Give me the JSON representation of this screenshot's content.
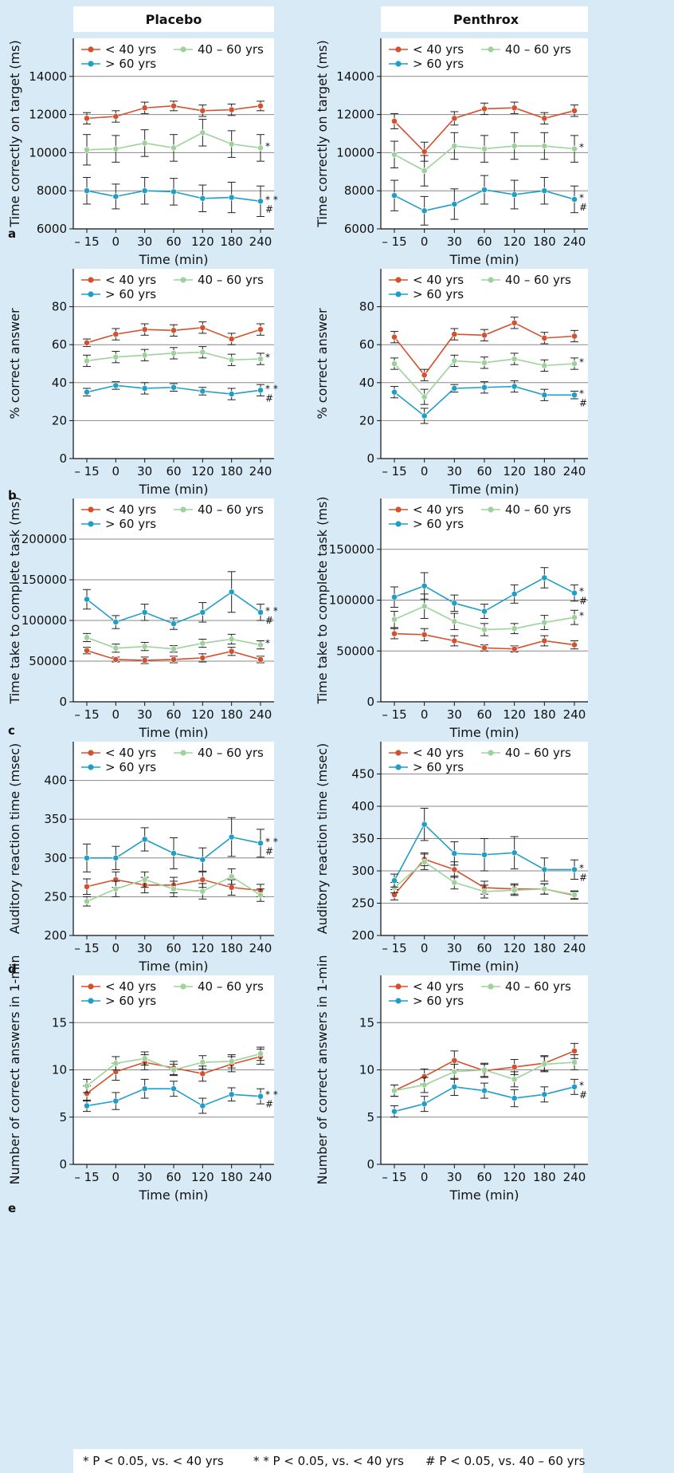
{
  "colors": {
    "lt40": "#d5502c",
    "40to60": "#9dd39a",
    "gt60": "#1f9fc6",
    "background": "#d8eaf5",
    "plot_bg": "#ffffff"
  },
  "columns": [
    "Placebo",
    "Penthrox"
  ],
  "footnote": {
    "a": "*   P < 0.05, vs. < 40 yrs",
    "b": "* *  P < 0.05, vs. < 40 yrs",
    "c": "#   P < 0.05, vs. 40 – 60 yrs"
  },
  "chart_data": [
    {
      "type": "line",
      "panel": "a",
      "group": "Placebo",
      "ylabel": "Time correctly on target (ms)",
      "xlabel": "Time (min)",
      "categories": [
        "– 15",
        "0",
        "30",
        "60",
        "120",
        "180",
        "240"
      ],
      "ylim": [
        6000,
        16000
      ],
      "yticks": [
        6000,
        8000,
        10000,
        12000,
        14000
      ],
      "legend": [
        "< 40 yrs",
        "40 – 60 yrs",
        "> 60 yrs"
      ],
      "series": [
        {
          "name": "< 40 yrs",
          "values": [
            11800,
            11900,
            12350,
            12450,
            12200,
            12250,
            12450
          ],
          "err": [
            300,
            300,
            300,
            250,
            300,
            300,
            250
          ]
        },
        {
          "name": "40 – 60 yrs",
          "values": [
            10150,
            10200,
            10500,
            10250,
            11050,
            10450,
            10250
          ],
          "err": [
            800,
            700,
            700,
            700,
            700,
            700,
            700
          ]
        },
        {
          "name": "> 60 yrs",
          "values": [
            8000,
            7700,
            8000,
            7950,
            7600,
            7650,
            7450
          ],
          "err": [
            700,
            650,
            700,
            700,
            700,
            800,
            800
          ]
        }
      ],
      "annotations": [
        {
          "series": 1,
          "text": "*"
        },
        {
          "series": 2,
          "text": "* *"
        },
        {
          "series": 2,
          "text": "#"
        }
      ]
    },
    {
      "type": "line",
      "panel": "a",
      "group": "Penthrox",
      "ylabel": "Time correctly on target (ms)",
      "xlabel": "Time (min)",
      "categories": [
        "– 15",
        "0",
        "30",
        "60",
        "120",
        "180",
        "240"
      ],
      "ylim": [
        6000,
        16000
      ],
      "yticks": [
        6000,
        8000,
        10000,
        12000,
        14000
      ],
      "legend": [
        "< 40 yrs",
        "40 – 60 yrs",
        "> 60 yrs"
      ],
      "series": [
        {
          "name": "< 40 yrs",
          "values": [
            11650,
            10050,
            11800,
            12300,
            12350,
            11800,
            12200
          ],
          "err": [
            400,
            500,
            350,
            300,
            300,
            300,
            300
          ]
        },
        {
          "name": "40 – 60 yrs",
          "values": [
            9900,
            9050,
            10350,
            10200,
            10350,
            10350,
            10200
          ],
          "err": [
            700,
            800,
            700,
            700,
            700,
            700,
            700
          ]
        },
        {
          "name": "> 60 yrs",
          "values": [
            7750,
            6950,
            7300,
            8050,
            7800,
            8000,
            7550
          ],
          "err": [
            800,
            750,
            800,
            750,
            750,
            700,
            700
          ]
        }
      ],
      "annotations": [
        {
          "series": 1,
          "text": "*"
        },
        {
          "series": 2,
          "text": "*"
        },
        {
          "series": 2,
          "text": "#"
        }
      ]
    },
    {
      "type": "line",
      "panel": "b",
      "group": "Placebo",
      "ylabel": "% correct answer",
      "xlabel": "Time (min)",
      "categories": [
        "– 15",
        "0",
        "30",
        "60",
        "120",
        "180",
        "240"
      ],
      "ylim": [
        0,
        100
      ],
      "yticks": [
        0,
        20,
        40,
        60,
        80
      ],
      "legend": [
        "< 40 yrs",
        "40 – 60 yrs",
        "> 60 yrs"
      ],
      "series": [
        {
          "name": "< 40 yrs",
          "values": [
            61,
            65.5,
            68,
            67.5,
            69,
            63,
            68
          ],
          "err": [
            2,
            3,
            3,
            3,
            3,
            3,
            3
          ]
        },
        {
          "name": "40 – 60 yrs",
          "values": [
            51.5,
            53.5,
            54.5,
            55.5,
            56,
            52,
            52.5
          ],
          "err": [
            3,
            3,
            3,
            3,
            3,
            3,
            3
          ]
        },
        {
          "name": "> 60 yrs",
          "values": [
            35,
            38.5,
            37,
            37.5,
            35.5,
            34,
            36
          ],
          "err": [
            2,
            2,
            3,
            2,
            2,
            3,
            3
          ]
        }
      ],
      "annotations": [
        {
          "series": 1,
          "text": "*"
        },
        {
          "series": 2,
          "text": "* *"
        },
        {
          "series": 2,
          "text": "#"
        }
      ]
    },
    {
      "type": "line",
      "panel": "b",
      "group": "Penthrox",
      "ylabel": "% correct answer",
      "xlabel": "Time (min)",
      "categories": [
        "– 15",
        "0",
        "30",
        "60",
        "120",
        "180",
        "240"
      ],
      "ylim": [
        0,
        100
      ],
      "yticks": [
        0,
        20,
        40,
        60,
        80
      ],
      "legend": [
        "< 40 yrs",
        "40 – 60 yrs",
        "> 60 yrs"
      ],
      "series": [
        {
          "name": "< 40 yrs",
          "values": [
            64,
            44,
            65.5,
            65,
            71.5,
            63.5,
            64.5
          ],
          "err": [
            3,
            3,
            3,
            3,
            3,
            3,
            3
          ]
        },
        {
          "name": "40 – 60 yrs",
          "values": [
            50,
            32.5,
            51.5,
            50.5,
            52.5,
            49,
            50
          ],
          "err": [
            3,
            4,
            3,
            3,
            3,
            3,
            3
          ]
        },
        {
          "name": "> 60 yrs",
          "values": [
            35,
            22.5,
            37,
            37.5,
            38,
            33.5,
            33.5
          ],
          "err": [
            3,
            4,
            2,
            3,
            3,
            3,
            2
          ]
        }
      ],
      "annotations": [
        {
          "series": 1,
          "text": "*"
        },
        {
          "series": 2,
          "text": "*"
        },
        {
          "series": 2,
          "text": "#"
        }
      ]
    },
    {
      "type": "line",
      "panel": "c",
      "group": "Placebo",
      "ylabel": "Time take to complete task (ms)",
      "xlabel": "Time (min)",
      "categories": [
        "– 15",
        "0",
        "30",
        "60",
        "120",
        "180",
        "240"
      ],
      "ylim": [
        0,
        250000
      ],
      "yticks": [
        0,
        50000,
        100000,
        150000,
        200000
      ],
      "legend": [
        "< 40 yrs",
        "40 – 60 yrs",
        "> 60 yrs"
      ],
      "series": [
        {
          "name": "< 40 yrs",
          "values": [
            63000,
            52000,
            51000,
            52000,
            54000,
            62000,
            52000
          ],
          "err": [
            4000,
            3000,
            4000,
            4000,
            5000,
            5000,
            4000
          ]
        },
        {
          "name": "40 – 60 yrs",
          "values": [
            79000,
            66000,
            68000,
            65000,
            72000,
            77000,
            70000
          ],
          "err": [
            5000,
            5000,
            5000,
            4000,
            5000,
            6000,
            5000
          ]
        },
        {
          "name": "> 60 yrs",
          "values": [
            126000,
            98000,
            110000,
            96000,
            110000,
            135000,
            110000
          ],
          "err": [
            12000,
            8000,
            10000,
            7000,
            12000,
            25000,
            10000
          ]
        }
      ],
      "annotations": [
        {
          "series": 1,
          "text": "*"
        },
        {
          "series": 2,
          "text": "* *"
        },
        {
          "series": 2,
          "text": "#"
        }
      ]
    },
    {
      "type": "line",
      "panel": "c",
      "group": "Penthrox",
      "ylabel": "Time take to complete task (ms)",
      "xlabel": "Time (min)",
      "categories": [
        "– 15",
        "0",
        "30",
        "60",
        "120",
        "180",
        "240"
      ],
      "ylim": [
        0,
        200000
      ],
      "yticks": [
        0,
        50000,
        100000,
        150000
      ],
      "legend": [
        "< 40 yrs",
        "40 – 60 yrs",
        "> 60 yrs"
      ],
      "series": [
        {
          "name": "< 40 yrs",
          "values": [
            67000,
            66000,
            60000,
            53000,
            52000,
            60000,
            56000
          ],
          "err": [
            5000,
            6000,
            5000,
            3000,
            3000,
            5000,
            4000
          ]
        },
        {
          "name": "40 – 60 yrs",
          "values": [
            81000,
            94000,
            79000,
            71000,
            72000,
            78000,
            83000
          ],
          "err": [
            8000,
            12000,
            8000,
            6000,
            5000,
            7000,
            7000
          ]
        },
        {
          "name": "> 60 yrs",
          "values": [
            103000,
            114000,
            97000,
            89000,
            106000,
            122000,
            107000
          ],
          "err": [
            10000,
            13000,
            8000,
            7000,
            9000,
            10000,
            8000
          ]
        }
      ],
      "annotations": [
        {
          "series": 1,
          "text": "*"
        },
        {
          "series": 2,
          "text": "*"
        },
        {
          "series": 2,
          "text": "#"
        }
      ]
    },
    {
      "type": "line",
      "panel": "d",
      "group": "Placebo",
      "ylabel": "Auditory reaction time (msec)",
      "xlabel": "Time (min)",
      "categories": [
        "– 15",
        "0",
        "30",
        "60",
        "120",
        "180",
        "240"
      ],
      "ylim": [
        200,
        450
      ],
      "yticks": [
        200,
        250,
        300,
        350,
        400
      ],
      "legend": [
        "< 40 yrs",
        "40 – 60 yrs",
        "> 60 yrs"
      ],
      "series": [
        {
          "name": "< 40 yrs",
          "values": [
            263,
            272,
            265,
            265,
            272,
            262,
            258
          ],
          "err": [
            10,
            10,
            10,
            10,
            10,
            10,
            8
          ]
        },
        {
          "name": "40 – 60 yrs",
          "values": [
            244,
            260,
            272,
            260,
            257,
            276,
            252
          ],
          "err": [
            6,
            10,
            10,
            10,
            10,
            10,
            8
          ]
        },
        {
          "name": "> 60 yrs",
          "values": [
            300,
            300,
            324,
            306,
            298,
            327,
            319
          ],
          "err": [
            18,
            15,
            15,
            20,
            15,
            25,
            18
          ]
        }
      ],
      "annotations": [
        {
          "series": 2,
          "text": "* *"
        },
        {
          "series": 2,
          "text": "#"
        }
      ]
    },
    {
      "type": "line",
      "panel": "d",
      "group": "Penthrox",
      "ylabel": "Auditory reaction time (msec)",
      "xlabel": "Time (min)",
      "categories": [
        "– 15",
        "0",
        "30",
        "60",
        "120",
        "180",
        "240"
      ],
      "ylim": [
        200,
        500
      ],
      "yticks": [
        200,
        250,
        300,
        350,
        400,
        450
      ],
      "legend": [
        "< 40 yrs",
        "40 – 60 yrs",
        "> 60 yrs"
      ],
      "series": [
        {
          "name": "< 40 yrs",
          "values": [
            263,
            318,
            302,
            274,
            272,
            272,
            262
          ],
          "err": [
            8,
            10,
            12,
            10,
            8,
            8,
            6
          ]
        },
        {
          "name": "40 – 60 yrs",
          "values": [
            274,
            314,
            282,
            268,
            270,
            272,
            263
          ],
          "err": [
            8,
            12,
            10,
            10,
            8,
            8,
            6
          ]
        },
        {
          "name": "> 60 yrs",
          "values": [
            285,
            372,
            327,
            325,
            328,
            302,
            302
          ],
          "err": [
            10,
            25,
            18,
            25,
            25,
            18,
            15
          ]
        }
      ],
      "annotations": [
        {
          "series": 2,
          "text": "*"
        },
        {
          "series": 2,
          "text": "#"
        }
      ]
    },
    {
      "type": "line",
      "panel": "e",
      "group": "Placebo",
      "ylabel": "Number of correct answers in 1-min",
      "xlabel": "Time (min)",
      "categories": [
        "– 15",
        "0",
        "30",
        "60",
        "120",
        "180",
        "240"
      ],
      "ylim": [
        0,
        20
      ],
      "yticks": [
        0,
        5,
        10,
        15
      ],
      "legend": [
        "< 40 yrs",
        "40 – 60 yrs",
        "> 60 yrs"
      ],
      "series": [
        {
          "name": "< 40 yrs",
          "values": [
            7.5,
            9.8,
            10.8,
            10.2,
            9.6,
            10.6,
            11.4
          ],
          "err": [
            0.8,
            0.9,
            0.8,
            0.7,
            0.8,
            0.8,
            0.8
          ]
        },
        {
          "name": "40 – 60 yrs",
          "values": [
            8.3,
            10.7,
            11.2,
            10.0,
            10.8,
            10.9,
            11.7
          ],
          "err": [
            0.7,
            0.7,
            0.7,
            0.6,
            0.7,
            0.7,
            0.7
          ]
        },
        {
          "name": "> 60 yrs",
          "values": [
            6.2,
            6.7,
            8.0,
            8.0,
            6.2,
            7.4,
            7.2
          ],
          "err": [
            0.6,
            0.9,
            1.0,
            0.8,
            0.8,
            0.7,
            0.8
          ]
        }
      ],
      "annotations": [
        {
          "series": 2,
          "text": "* *"
        },
        {
          "series": 2,
          "text": "#"
        }
      ]
    },
    {
      "type": "line",
      "panel": "e",
      "group": "Penthrox",
      "ylabel": "Number of correct answers in 1-min",
      "xlabel": "Time (min)",
      "categories": [
        "– 15",
        "0",
        "30",
        "60",
        "120",
        "180",
        "240"
      ],
      "ylim": [
        0,
        20
      ],
      "yticks": [
        0,
        5,
        10,
        15
      ],
      "legend": [
        "< 40 yrs",
        "40 – 60 yrs",
        "> 60 yrs"
      ],
      "series": [
        {
          "name": "< 40 yrs",
          "values": [
            7.8,
            9.3,
            11.0,
            9.9,
            10.3,
            10.7,
            12.0
          ],
          "err": [
            0.6,
            0.8,
            1.0,
            0.7,
            0.8,
            0.8,
            0.8
          ]
        },
        {
          "name": "40 – 60 yrs",
          "values": [
            7.8,
            8.4,
            9.8,
            10.0,
            9.0,
            10.6,
            10.8
          ],
          "err": [
            0.6,
            0.8,
            0.8,
            0.7,
            0.8,
            0.8,
            0.8
          ]
        },
        {
          "name": "> 60 yrs",
          "values": [
            5.6,
            6.4,
            8.2,
            7.8,
            7.0,
            7.4,
            8.2
          ],
          "err": [
            0.6,
            0.8,
            0.9,
            0.8,
            0.9,
            0.8,
            0.8
          ]
        }
      ],
      "annotations": [
        {
          "series": 2,
          "text": "*"
        },
        {
          "series": 2,
          "text": "#"
        }
      ]
    }
  ]
}
